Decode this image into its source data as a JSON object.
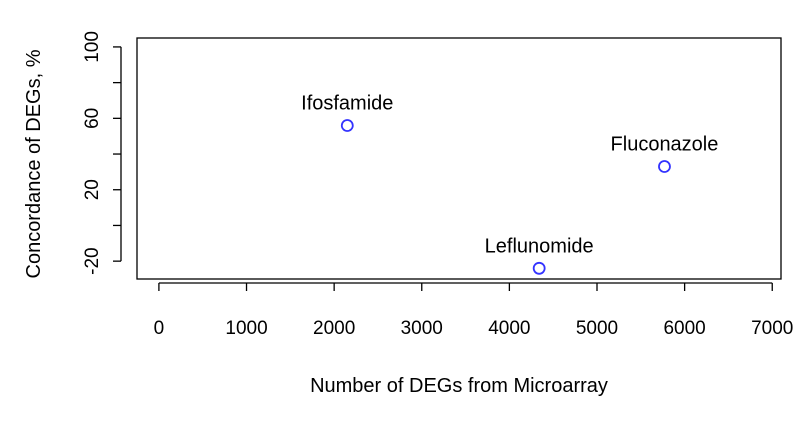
{
  "chart_data": {
    "type": "scatter",
    "title": "",
    "xlabel": "Number of DEGs from Microarray",
    "ylabel": "Concordance of DEGs, %",
    "xlim": [
      -250,
      7100
    ],
    "ylim": [
      -30,
      105
    ],
    "x_ticks": [
      0,
      1000,
      2000,
      3000,
      4000,
      5000,
      6000,
      7000
    ],
    "y_ticks": [
      -20,
      0,
      20,
      40,
      60,
      80,
      100
    ],
    "y_tick_labels": [
      "-20",
      "",
      "20",
      "",
      "60",
      "",
      "100"
    ],
    "grid": false,
    "point_color": "#3333ff",
    "points": [
      {
        "label": "Ifosfamide",
        "x": 2150,
        "y": 56
      },
      {
        "label": "Fluconazole",
        "x": 5770,
        "y": 33
      },
      {
        "label": "Leflunomide",
        "x": 4340,
        "y": -24
      }
    ]
  }
}
